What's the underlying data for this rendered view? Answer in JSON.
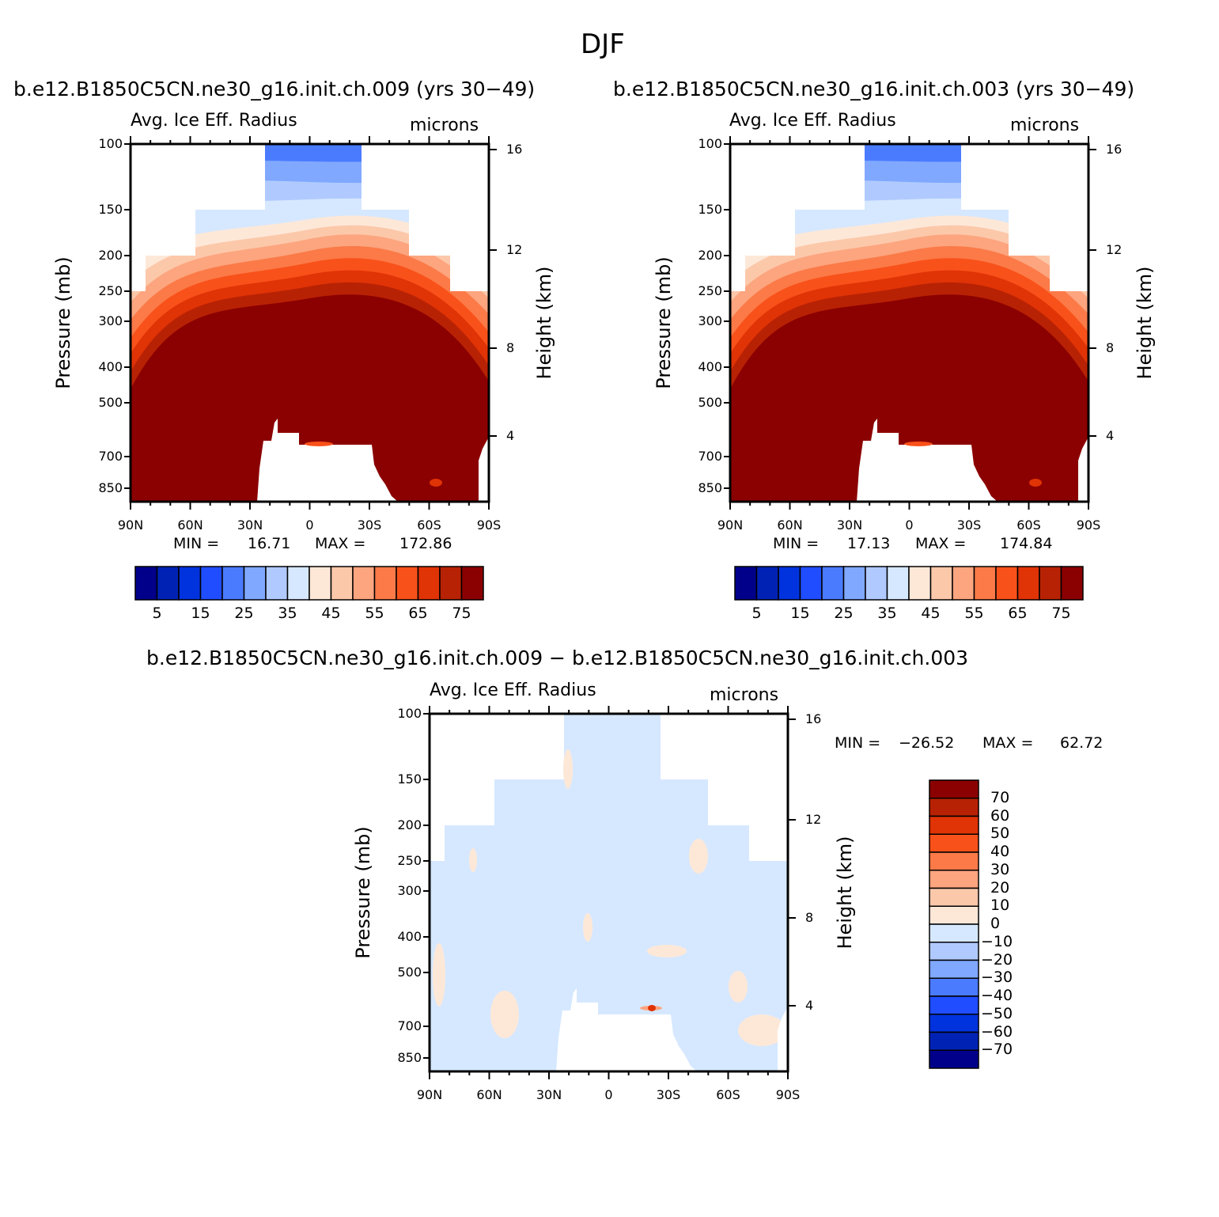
{
  "page_title": "DJF",
  "palette": {
    "colors": [
      "#00008b",
      "#0022b4",
      "#0033dd",
      "#1f4dff",
      "#4a7bff",
      "#80a8ff",
      "#b0caff",
      "#d6e8ff",
      "#fde8d8",
      "#fcc8aa",
      "#fca57f",
      "#fb7a48",
      "#f9511a",
      "#e03306",
      "#b82204",
      "#8b0000"
    ],
    "land": "#ffffff"
  },
  "panels": [
    {
      "case_title": "b.e12.B1850C5CN.ne30_g16.init.ch.009 (yrs 30−49)",
      "variable": "Avg. Ice Eff. Radius",
      "units": "microns",
      "ylabel": "Pressure (mb)",
      "ylabel_right": "Height (km)",
      "pressure_ticks": [
        "100",
        "150",
        "200",
        "250",
        "300",
        "400",
        "500",
        "700",
        "850"
      ],
      "height_ticks": [
        "16",
        "12",
        "8",
        "4"
      ],
      "lat_ticks": [
        "90N",
        "60N",
        "30N",
        "0",
        "30S",
        "60S",
        "90S"
      ],
      "min_label": "MIN =",
      "min_value": "16.71",
      "max_label": "MAX =",
      "max_value": "172.86",
      "colorbar_labels": [
        "5",
        "15",
        "25",
        "35",
        "45",
        "55",
        "65",
        "75"
      ]
    },
    {
      "case_title": "b.e12.B1850C5CN.ne30_g16.init.ch.003 (yrs 30−49)",
      "variable": "Avg. Ice Eff. Radius",
      "units": "microns",
      "ylabel": "Pressure (mb)",
      "ylabel_right": "Height (km)",
      "pressure_ticks": [
        "100",
        "150",
        "200",
        "250",
        "300",
        "400",
        "500",
        "700",
        "850"
      ],
      "height_ticks": [
        "16",
        "12",
        "8",
        "4"
      ],
      "lat_ticks": [
        "90N",
        "60N",
        "30N",
        "0",
        "30S",
        "60S",
        "90S"
      ],
      "min_label": "MIN =",
      "min_value": "17.13",
      "max_label": "MAX =",
      "max_value": "174.84",
      "colorbar_labels": [
        "5",
        "15",
        "25",
        "35",
        "45",
        "55",
        "65",
        "75"
      ]
    },
    {
      "case_title": "b.e12.B1850C5CN.ne30_g16.init.ch.009 − b.e12.B1850C5CN.ne30_g16.init.ch.003",
      "variable": "Avg. Ice Eff. Radius",
      "units": "microns",
      "ylabel": "Pressure (mb)",
      "ylabel_right": "Height (km)",
      "pressure_ticks": [
        "100",
        "150",
        "200",
        "250",
        "300",
        "400",
        "500",
        "700",
        "850"
      ],
      "height_ticks": [
        "16",
        "12",
        "8",
        "4"
      ],
      "lat_ticks": [
        "90N",
        "60N",
        "30N",
        "0",
        "30S",
        "60S",
        "90S"
      ],
      "min_label": "MIN =",
      "min_value": "−26.52",
      "max_label": "MAX =",
      "max_value": "62.72",
      "colorbar_labels": [
        "70",
        "60",
        "50",
        "40",
        "30",
        "20",
        "10",
        "0",
        "−10",
        "−20",
        "−30",
        "−40",
        "−50",
        "−60",
        "−70"
      ]
    }
  ],
  "chart_data": [
    {
      "type": "heatmap",
      "title": "b.e12.B1850C5CN.ne30_g16.init.ch.009 (yrs 30−49)",
      "subtitle": "Avg. Ice Eff. Radius",
      "units": "microns",
      "x": [
        "90N",
        "60N",
        "30N",
        "0",
        "30S",
        "60S",
        "90S"
      ],
      "y": [
        100,
        150,
        200,
        250,
        300,
        400,
        500,
        700,
        850
      ],
      "xlabel": "",
      "ylabel": "Pressure (mb)",
      "ylabel_right": "Height (km)",
      "y_scale": "log",
      "min": 16.71,
      "max": 172.86,
      "levels": [
        5,
        10,
        15,
        20,
        25,
        30,
        35,
        40,
        45,
        50,
        55,
        60,
        65,
        70,
        75
      ]
    },
    {
      "type": "heatmap",
      "title": "b.e12.B1850C5CN.ne30_g16.init.ch.003 (yrs 30−49)",
      "subtitle": "Avg. Ice Eff. Radius",
      "units": "microns",
      "x": [
        "90N",
        "60N",
        "30N",
        "0",
        "30S",
        "60S",
        "90S"
      ],
      "y": [
        100,
        150,
        200,
        250,
        300,
        400,
        500,
        700,
        850
      ],
      "xlabel": "",
      "ylabel": "Pressure (mb)",
      "ylabel_right": "Height (km)",
      "y_scale": "log",
      "min": 17.13,
      "max": 174.84,
      "levels": [
        5,
        10,
        15,
        20,
        25,
        30,
        35,
        40,
        45,
        50,
        55,
        60,
        65,
        70,
        75
      ]
    },
    {
      "type": "heatmap",
      "title": "b.e12.B1850C5CN.ne30_g16.init.ch.009 − b.e12.B1850C5CN.ne30_g16.init.ch.003",
      "subtitle": "Avg. Ice Eff. Radius",
      "units": "microns",
      "x": [
        "90N",
        "60N",
        "30N",
        "0",
        "30S",
        "60S",
        "90S"
      ],
      "y": [
        100,
        150,
        200,
        250,
        300,
        400,
        500,
        700,
        850
      ],
      "xlabel": "",
      "ylabel": "Pressure (mb)",
      "ylabel_right": "Height (km)",
      "y_scale": "log",
      "min": -26.52,
      "max": 62.72,
      "levels": [
        -70,
        -60,
        -50,
        -40,
        -30,
        -20,
        -10,
        0,
        10,
        20,
        30,
        40,
        50,
        60,
        70
      ]
    }
  ]
}
